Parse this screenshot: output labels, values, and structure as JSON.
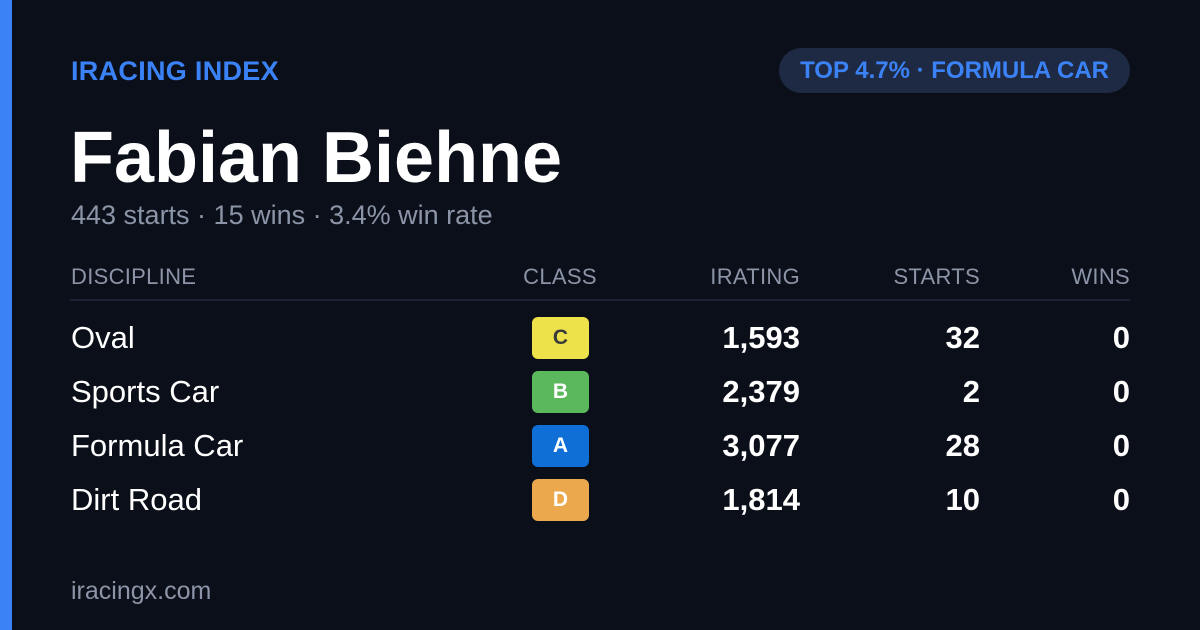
{
  "header": {
    "brand": "IRACING INDEX",
    "badge": "TOP 4.7% · FORMULA CAR"
  },
  "driver": {
    "name": "Fabian Biehne",
    "summary": "443 starts · 15 wins · 3.4% win rate"
  },
  "table": {
    "columns": {
      "discipline": "DISCIPLINE",
      "class": "CLASS",
      "irating": "IRATING",
      "starts": "STARTS",
      "wins": "WINS"
    },
    "rows": [
      {
        "discipline": "Oval",
        "class": "C",
        "irating": "1,593",
        "starts": "32",
        "wins": "0"
      },
      {
        "discipline": "Sports Car",
        "class": "B",
        "irating": "2,379",
        "starts": "2",
        "wins": "0"
      },
      {
        "discipline": "Formula Car",
        "class": "A",
        "irating": "3,077",
        "starts": "28",
        "wins": "0"
      },
      {
        "discipline": "Dirt Road",
        "class": "D",
        "irating": "1,814",
        "starts": "10",
        "wins": "0"
      }
    ]
  },
  "class_colors": {
    "A": {
      "bg": "#0f6fd6",
      "fg": "#ffffff"
    },
    "B": {
      "bg": "#5cb85c",
      "fg": "#ffffff"
    },
    "C": {
      "bg": "#ede24a",
      "fg": "#3a3a3a"
    },
    "D": {
      "bg": "#eca84c",
      "fg": "#ffffff"
    }
  },
  "colors": {
    "accent": "#3b82f6",
    "background": "#0b0f19",
    "muted": "#8b95a7"
  },
  "footer": {
    "site": "iracingx.com"
  }
}
